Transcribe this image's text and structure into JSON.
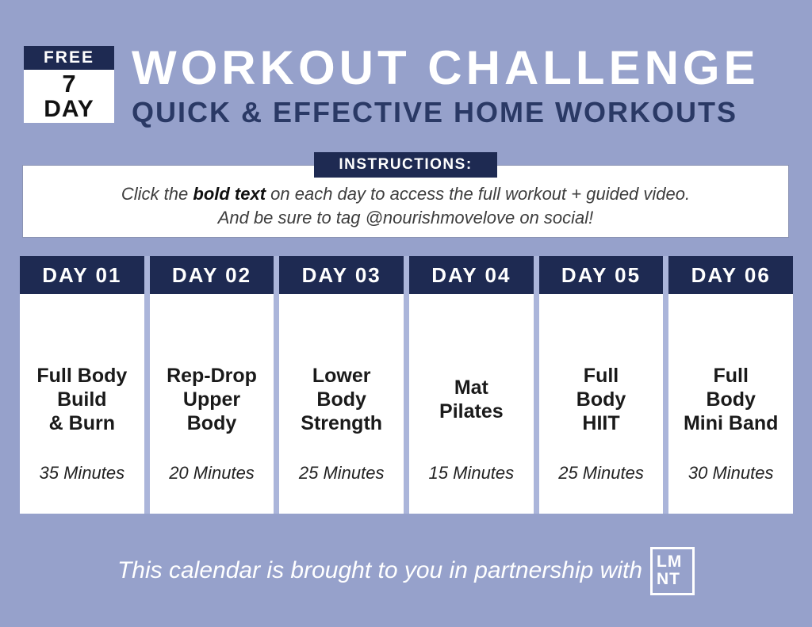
{
  "badge": {
    "free_label": "FREE",
    "number": "7",
    "day_label": "DAY"
  },
  "header": {
    "title": "WORKOUT CHALLENGE",
    "subtitle": "QUICK & EFFECTIVE HOME WORKOUTS"
  },
  "instructions": {
    "label": "INSTRUCTIONS:",
    "line1_prefix": "Click the ",
    "line1_bold": "bold text",
    "line1_suffix": " on each day to access the full workout + guided video.",
    "line2": "And be sure to tag @nourishmovelove on social!"
  },
  "calendar": {
    "days": [
      {
        "label": "DAY 01",
        "workout_lines": [
          "Full Body",
          "Build",
          "& Burn"
        ],
        "duration": "35 Minutes"
      },
      {
        "label": "DAY 02",
        "workout_lines": [
          "Rep-Drop",
          "Upper",
          "Body"
        ],
        "duration": "20 Minutes"
      },
      {
        "label": "DAY 03",
        "workout_lines": [
          "Lower",
          "Body",
          "Strength"
        ],
        "duration": "25 Minutes"
      },
      {
        "label": "DAY 04",
        "workout_lines": [
          "Mat",
          "Pilates"
        ],
        "duration": "15 Minutes"
      },
      {
        "label": "DAY 05",
        "workout_lines": [
          "Full",
          "Body",
          "HIIT"
        ],
        "duration": "25 Minutes"
      },
      {
        "label": "DAY 06",
        "workout_lines": [
          "Full",
          "Body",
          "Mini Band"
        ],
        "duration": "30 Minutes"
      }
    ]
  },
  "footer": {
    "text": "This calendar is brought to you in partnership with",
    "logo_line1": "LM",
    "logo_line2": "NT"
  },
  "colors": {
    "background": "#96a1cb",
    "navy": "#1e2a52",
    "subtitle_navy": "#2a3965",
    "column_gap": "#abb5da",
    "card_white": "#ffffff",
    "text_black": "#1a1a1a"
  }
}
